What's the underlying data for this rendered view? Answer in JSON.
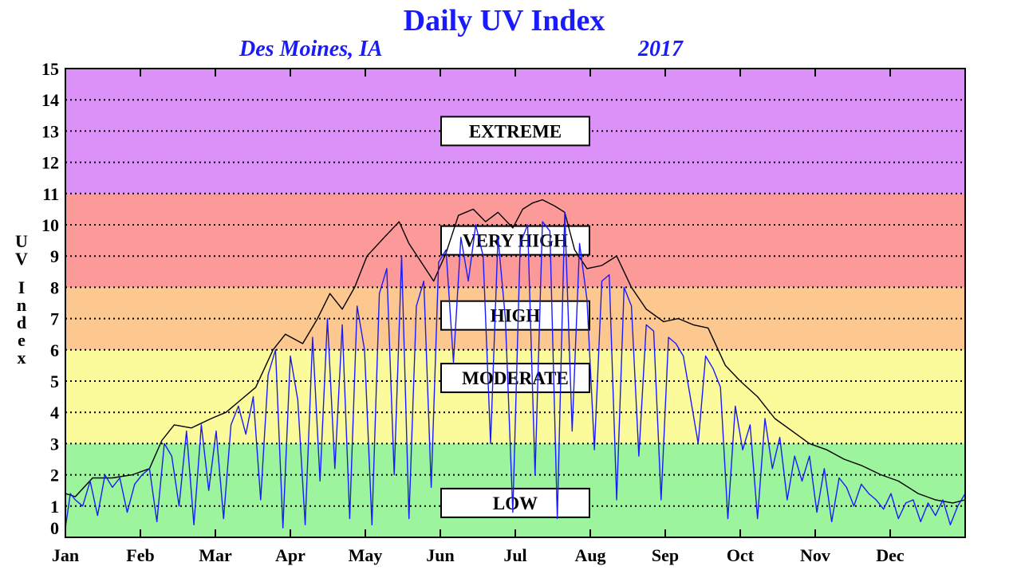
{
  "colors": {
    "low": "#9cf59c",
    "moderate": "#fbfb9c",
    "high": "#fcc88f",
    "very_high": "#fc9a9a",
    "extreme": "#dc91f9",
    "clear_sky_line": "#000000",
    "actual_line": "#1a1aff",
    "grid": "#000000"
  },
  "chart_data": {
    "type": "line",
    "title": "Daily UV Index",
    "subtitle_location": "Des Moines, IA",
    "subtitle_year": "2017",
    "ylabel": "UV Index",
    "ylim": [
      0,
      15
    ],
    "yticks": [
      "0",
      "1",
      "2",
      "3",
      "4",
      "5",
      "6",
      "7",
      "8",
      "9",
      "10",
      "11",
      "12",
      "13",
      "14",
      "15"
    ],
    "xticks": [
      "Jan",
      "Feb",
      "Mar",
      "Apr",
      "May",
      "Jun",
      "Jul",
      "Aug",
      "Sep",
      "Oct",
      "Nov",
      "Dec"
    ],
    "xlim": [
      1,
      365
    ],
    "grid": "horizontal dotted",
    "zones": [
      {
        "label": "LOW",
        "from": 0,
        "to": 3,
        "color_key": "low"
      },
      {
        "label": "MODERATE",
        "from": 3,
        "to": 6,
        "color_key": "moderate"
      },
      {
        "label": "HIGH",
        "from": 6,
        "to": 8,
        "color_key": "high"
      },
      {
        "label": "VERY HIGH",
        "from": 8,
        "to": 11,
        "color_key": "very_high"
      },
      {
        "label": "EXTREME",
        "from": 11,
        "to": 15,
        "color_key": "extreme"
      }
    ],
    "series": [
      {
        "color_key": "clear_sky_line",
        "x": [
          1,
          5,
          12,
          20,
          28,
          35,
          40,
          45,
          52,
          60,
          66,
          72,
          78,
          85,
          90,
          97,
          103,
          108,
          113,
          118,
          123,
          130,
          136,
          140,
          145,
          150,
          155,
          160,
          166,
          171,
          176,
          182,
          186,
          190,
          194,
          199,
          203,
          207,
          212,
          218,
          224,
          230,
          236,
          243,
          249,
          255,
          261,
          268,
          274,
          281,
          288,
          295,
          302,
          309,
          316,
          323,
          331,
          338,
          346,
          353,
          360,
          365
        ],
        "y": [
          1.4,
          1.3,
          1.9,
          1.9,
          2.0,
          2.2,
          3.1,
          3.6,
          3.5,
          3.8,
          4.0,
          4.4,
          4.8,
          6.0,
          6.5,
          6.2,
          7.0,
          7.8,
          7.3,
          8.0,
          9.0,
          9.6,
          10.1,
          9.4,
          8.8,
          8.2,
          9.1,
          10.3,
          10.5,
          10.1,
          10.4,
          9.9,
          10.5,
          10.7,
          10.8,
          10.6,
          10.4,
          9.2,
          8.6,
          8.7,
          9.0,
          8.0,
          7.3,
          6.9,
          7.0,
          6.8,
          6.7,
          5.5,
          5.0,
          4.5,
          3.8,
          3.4,
          3.0,
          2.8,
          2.5,
          2.3,
          2.0,
          1.8,
          1.4,
          1.2,
          1.1,
          1.2
        ]
      },
      {
        "color_key": "actual_line",
        "x": [
          1,
          3,
          5,
          8,
          11,
          14,
          17,
          20,
          23,
          26,
          29,
          32,
          35,
          38,
          41,
          44,
          47,
          50,
          53,
          56,
          59,
          62,
          65,
          68,
          71,
          74,
          77,
          80,
          83,
          86,
          89,
          92,
          95,
          98,
          101,
          104,
          107,
          110,
          113,
          116,
          119,
          122,
          125,
          128,
          131,
          134,
          137,
          140,
          143,
          146,
          149,
          152,
          155,
          158,
          161,
          164,
          167,
          170,
          173,
          176,
          179,
          182,
          185,
          188,
          191,
          194,
          197,
          200,
          203,
          206,
          209,
          212,
          215,
          218,
          221,
          224,
          227,
          230,
          233,
          236,
          239,
          242,
          245,
          248,
          251,
          254,
          257,
          260,
          263,
          266,
          269,
          272,
          275,
          278,
          281,
          284,
          287,
          290,
          293,
          296,
          299,
          302,
          305,
          308,
          311,
          314,
          317,
          320,
          323,
          326,
          329,
          332,
          335,
          338,
          341,
          344,
          347,
          350,
          353,
          356,
          359,
          362,
          365
        ],
        "y": [
          0.3,
          1.4,
          1.2,
          1.0,
          1.8,
          0.7,
          2.0,
          1.6,
          1.9,
          0.8,
          1.7,
          2.0,
          2.2,
          0.5,
          3.0,
          2.6,
          1.0,
          3.4,
          0.4,
          3.6,
          1.5,
          3.4,
          0.6,
          3.6,
          4.2,
          3.3,
          4.5,
          1.2,
          5.2,
          6.0,
          0.3,
          5.8,
          4.4,
          0.4,
          6.4,
          1.8,
          7.0,
          2.2,
          6.8,
          0.6,
          7.4,
          6.0,
          0.4,
          7.8,
          8.6,
          2.0,
          9.0,
          0.6,
          7.4,
          8.2,
          1.6,
          8.8,
          9.2,
          5.6,
          9.6,
          8.2,
          10.0,
          9.0,
          3.0,
          9.6,
          7.0,
          0.8,
          9.4,
          10.0,
          2.0,
          10.1,
          9.8,
          0.6,
          10.4,
          3.4,
          9.4,
          7.6,
          2.8,
          8.2,
          8.4,
          1.2,
          8.0,
          7.4,
          2.6,
          6.8,
          6.6,
          1.2,
          6.4,
          6.2,
          5.8,
          4.4,
          3.0,
          5.8,
          5.4,
          4.8,
          0.6,
          4.2,
          2.8,
          3.6,
          0.6,
          3.8,
          2.2,
          3.2,
          1.2,
          2.6,
          1.8,
          2.6,
          0.8,
          2.2,
          0.5,
          1.9,
          1.6,
          1.0,
          1.7,
          1.4,
          1.2,
          0.9,
          1.4,
          0.6,
          1.1,
          1.2,
          0.5,
          1.1,
          0.7,
          1.2,
          0.4,
          1.0,
          1.4
        ]
      }
    ]
  }
}
